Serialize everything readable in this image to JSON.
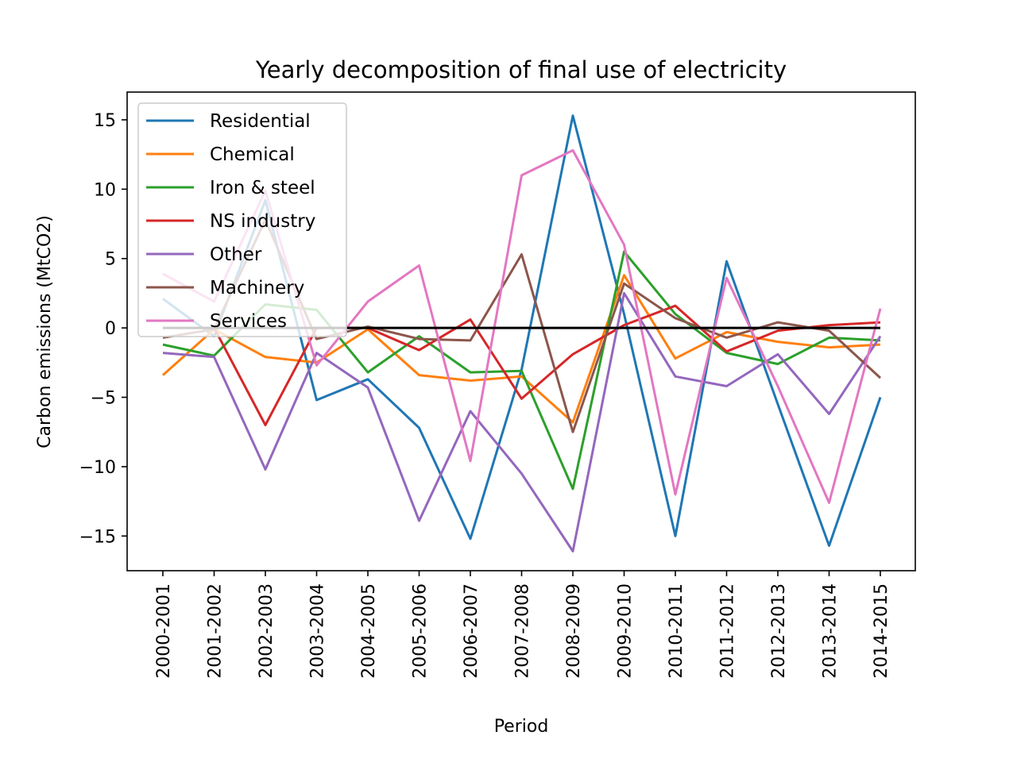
{
  "chart_data": {
    "type": "line",
    "title": "Yearly decomposition of final use of electricity",
    "xlabel": "Period",
    "ylabel": "Carbon emissions (MtCO2)",
    "ylim": [
      -17.5,
      17
    ],
    "yticks": [
      15,
      10,
      5,
      0,
      -5,
      -10,
      -15
    ],
    "ytick_labels": [
      "15",
      "10",
      "5",
      "0",
      "−5",
      "−10",
      "−15"
    ],
    "categories": [
      "2000-2001",
      "2001-2002",
      "2002-2003",
      "2003-2004",
      "2004-2005",
      "2005-2006",
      "2006-2007",
      "2007-2008",
      "2008-2009",
      "2009-2010",
      "2010-2011",
      "2011-2012",
      "2012-2013",
      "2013-2014",
      "2014-2015"
    ],
    "grid": false,
    "legend_position": "top-left",
    "zero_line": {
      "value": 0,
      "color": "#000000"
    },
    "series": [
      {
        "name": "Residential",
        "color": "#1f77b4",
        "values": [
          2.1,
          -0.6,
          9.2,
          -5.2,
          -3.7,
          -7.2,
          -15.2,
          -3.0,
          15.3,
          1.0,
          -15.0,
          4.8,
          -5.5,
          -15.7,
          -5.0
        ]
      },
      {
        "name": "Chemical",
        "color": "#ff7f0e",
        "values": [
          -3.4,
          -0.1,
          -2.1,
          -2.5,
          -0.1,
          -3.4,
          -3.8,
          -3.5,
          -6.8,
          3.8,
          -2.2,
          -0.3,
          -1.0,
          -1.4,
          -1.2
        ]
      },
      {
        "name": "Iron & steel",
        "color": "#2ca02c",
        "values": [
          -1.2,
          -2.0,
          1.7,
          1.3,
          -3.2,
          -0.6,
          -3.2,
          -3.1,
          -11.6,
          5.5,
          1.0,
          -1.8,
          -2.6,
          -0.7,
          -0.9
        ]
      },
      {
        "name": "NS industry",
        "color": "#d62728",
        "values": [
          0.0,
          0.0,
          -7.0,
          0.0,
          0.0,
          -1.6,
          0.6,
          -5.1,
          -1.9,
          0.2,
          1.6,
          -1.7,
          -0.2,
          0.2,
          0.4
        ]
      },
      {
        "name": "Other",
        "color": "#9467bd",
        "values": [
          -1.8,
          -2.1,
          -10.2,
          -1.8,
          -4.3,
          -13.9,
          -6.0,
          -10.5,
          -16.1,
          2.5,
          -3.5,
          -4.2,
          -1.9,
          -6.2,
          -0.6
        ]
      },
      {
        "name": "Machinery",
        "color": "#8c564b",
        "values": [
          -0.7,
          -0.1,
          7.8,
          -0.8,
          0.1,
          -0.8,
          -0.9,
          5.3,
          -7.5,
          3.2,
          0.7,
          -0.7,
          0.4,
          -0.2,
          -3.6
        ]
      },
      {
        "name": "Services",
        "color": "#e377c2",
        "values": [
          3.9,
          1.9,
          9.9,
          -2.7,
          1.9,
          4.5,
          -9.6,
          11.0,
          12.8,
          6.0,
          -12.0,
          3.6,
          -4.2,
          -12.6,
          1.4
        ]
      }
    ]
  }
}
